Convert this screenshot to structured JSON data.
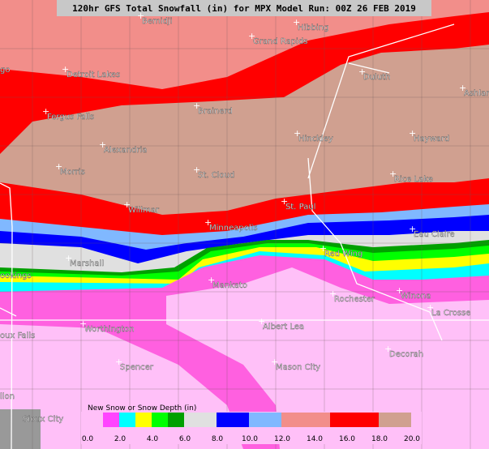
{
  "title": "120hr GFS Total Snowfall (in) for MPX Model Run: 00Z 26 FEB 2019",
  "cities": [
    "Bemidji",
    "Hibbing",
    "Grand Rapids",
    "Detroit Lakes",
    "Duluth",
    "Ashland",
    "Fergus Falls",
    "Brainerd",
    "Alexandria",
    "Hinckley",
    "Hayward",
    "Morris",
    "St. Cloud",
    "Rice Lake",
    "Willmar",
    "St. Paul",
    "Minneapolis",
    "Eau Claire",
    "Marshall",
    "Red Wing",
    "Mankato",
    "Rochester",
    "Winona",
    "La Crosse",
    "Worthington",
    "Albert Lea",
    "Spencer",
    "Mason City",
    "Decorah",
    "Sioux City",
    "oux Falls",
    "ookings",
    "go",
    "llon"
  ],
  "legend": {
    "title": "New Snow or Snow Depth (in)",
    "colors": [
      "#ff44ff",
      "#00ffff",
      "#ffff00",
      "#00ff00",
      "#00a000",
      "#e0e0e0",
      "#0000ff",
      "#80b8ff",
      "#f28e8a",
      "#ff0000",
      "#d0a090"
    ],
    "ticks": [
      "0.0",
      "2.0",
      "4.0",
      "6.0",
      "8.0",
      "10.0",
      "12.0",
      "14.0",
      "16.0",
      "18.0",
      "20.0"
    ]
  }
}
